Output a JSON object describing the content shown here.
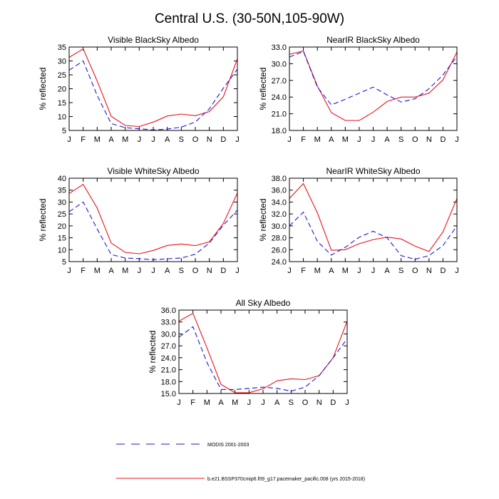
{
  "title": "Central U.S. (30-50N,105-90W)",
  "months": [
    "J",
    "F",
    "M",
    "A",
    "M",
    "J",
    "J",
    "A",
    "S",
    "O",
    "N",
    "D",
    "J"
  ],
  "colors": {
    "model": "#e8141a",
    "obs": "#1a1ad6",
    "axis": "#000000"
  },
  "legend": {
    "obs_label": "MODIS 2001-2003",
    "model_label": "b.e21.BSSP370cmip6.f09_g17.pacemaker_pacific.008 (yrs 2015-2018)"
  },
  "chart_data": [
    {
      "type": "line",
      "title": "Visible BlackSky Albedo",
      "ylabel": "% reflected",
      "ylim": [
        5,
        35
      ],
      "yticks": [
        "5",
        "10",
        "15",
        "20",
        "25",
        "30",
        "35"
      ],
      "series": [
        {
          "name": "b.e21.BSSP370cmip6.f09_g17.pacemaker_pacific.008 (yrs 2015-2018)",
          "style": "solid",
          "values": [
            31.3,
            34.3,
            22.8,
            10.1,
            6.8,
            6.4,
            8.0,
            10.2,
            10.9,
            10.3,
            11.8,
            17.1,
            30.8
          ]
        },
        {
          "name": "MODIS 2001-2003",
          "style": "dashed",
          "values": [
            26.7,
            30.0,
            17.6,
            7.5,
            6.0,
            5.6,
            5.2,
            5.5,
            6.2,
            8.0,
            12.8,
            20.2,
            27.0
          ]
        }
      ]
    },
    {
      "type": "line",
      "title": "NearIR BlackSky Albedo",
      "ylabel": "% reflected",
      "ylim": [
        18,
        33
      ],
      "yticks": [
        "18.0",
        "21.0",
        "24.0",
        "27.0",
        "30.0",
        "33.0"
      ],
      "series": [
        {
          "name": "b.e21.BSSP370cmip6.f09_g17.pacemaker_pacific.008 (yrs 2015-2018)",
          "style": "solid",
          "values": [
            31.7,
            32.3,
            26.0,
            21.2,
            19.8,
            19.8,
            21.3,
            23.2,
            24.0,
            24.0,
            24.7,
            27.1,
            32.1
          ]
        },
        {
          "name": "MODIS 2001-2003",
          "style": "dashed",
          "values": [
            31.2,
            32.2,
            25.8,
            22.6,
            23.6,
            24.7,
            25.8,
            24.4,
            23.1,
            23.7,
            25.5,
            28.0,
            31.3
          ]
        }
      ]
    },
    {
      "type": "line",
      "title": "Visible WhiteSky Albedo",
      "ylabel": "% reflected",
      "ylim": [
        5,
        40
      ],
      "yticks": [
        "5",
        "10",
        "15",
        "20",
        "25",
        "30",
        "35",
        "40"
      ],
      "series": [
        {
          "name": "b.e21.BSSP370cmip6.f09_g17.pacemaker_pacific.008 (yrs 2015-2018)",
          "style": "solid",
          "values": [
            33.6,
            37.4,
            27.5,
            12.8,
            8.9,
            8.3,
            9.7,
            11.8,
            12.4,
            11.7,
            13.3,
            21.0,
            33.8
          ]
        },
        {
          "name": "MODIS 2001-2003",
          "style": "dashed",
          "values": [
            25.9,
            30.0,
            18.7,
            8.0,
            6.5,
            6.3,
            5.8,
            6.2,
            6.5,
            8.1,
            12.8,
            20.3,
            26.6
          ]
        }
      ]
    },
    {
      "type": "line",
      "title": "NearIR WhiteSky Albedo",
      "ylabel": "% reflected",
      "ylim": [
        24,
        38
      ],
      "yticks": [
        "24.0",
        "26.0",
        "28.0",
        "30.0",
        "32.0",
        "34.0",
        "36.0",
        "38.0"
      ],
      "series": [
        {
          "name": "b.e21.BSSP370cmip6.f09_g17.pacemaker_pacific.008 (yrs 2015-2018)",
          "style": "solid",
          "values": [
            34.6,
            37.1,
            32.2,
            25.9,
            26.0,
            27.0,
            27.7,
            28.1,
            27.8,
            26.6,
            25.7,
            29.0,
            34.6
          ]
        },
        {
          "name": "MODIS 2001-2003",
          "style": "dashed",
          "values": [
            30.0,
            32.3,
            27.4,
            25.1,
            26.4,
            28.1,
            29.1,
            28.0,
            25.0,
            24.4,
            25.0,
            26.7,
            30.0
          ]
        }
      ]
    },
    {
      "type": "line",
      "title": "All Sky Albedo",
      "ylabel": "% reflected",
      "ylim": [
        15,
        36
      ],
      "yticks": [
        "15.0",
        "18.0",
        "21.0",
        "24.0",
        "27.0",
        "30.0",
        "33.0",
        "36.0"
      ],
      "series": [
        {
          "name": "b.e21.BSSP370cmip6.f09_g17.pacemaker_pacific.008 (yrs 2015-2018)",
          "style": "solid",
          "values": [
            33.2,
            35.2,
            26.5,
            17.3,
            15.2,
            15.2,
            16.2,
            18.2,
            18.7,
            18.5,
            19.5,
            24.0,
            33.2
          ]
        },
        {
          "name": "MODIS 2001-2003",
          "style": "dashed",
          "values": [
            29.2,
            31.8,
            22.8,
            16.0,
            16.0,
            16.3,
            16.6,
            16.3,
            15.6,
            16.6,
            19.5,
            24.0,
            28.8
          ]
        }
      ]
    }
  ]
}
